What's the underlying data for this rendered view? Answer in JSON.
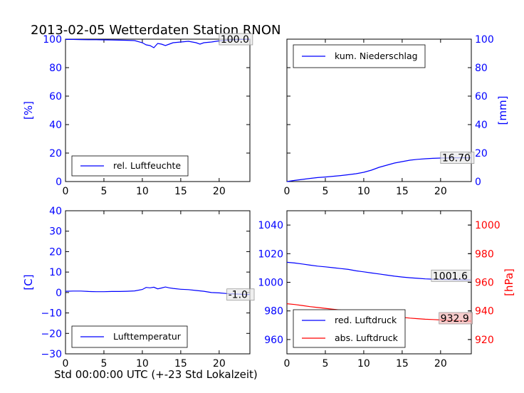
{
  "figure_title": "2013-02-05 Wetterdaten Station RNON",
  "footer_label": "Std 00:00:00 UTC (+-23 Std Lokalzeit)",
  "colors": {
    "blue": "#0000ff",
    "red": "#ff0000",
    "axis": "#000000",
    "value_box_red": "#f4b6b6",
    "value_box_gray": "#e8e8e8"
  },
  "chart_data": [
    {
      "id": "humidity",
      "type": "line",
      "xlim": [
        0,
        24
      ],
      "ylim": [
        0,
        100
      ],
      "x_ticks": [
        "0",
        "5",
        "10",
        "15",
        "20"
      ],
      "y_ticks": [
        "0",
        "20",
        "40",
        "60",
        "80",
        "100"
      ],
      "ylabel": "[%]",
      "legend": [
        "rel. Luftfeuchte"
      ],
      "current_value": "100.0",
      "series": [
        {
          "name": "rel. Luftfeuchte",
          "color": "#0000ff",
          "x": [
            0,
            1,
            2,
            3,
            4,
            5,
            6,
            7,
            8,
            9,
            10,
            10.5,
            11,
            11.5,
            12,
            12.5,
            13,
            13.5,
            14,
            15,
            16,
            17,
            17.5,
            18,
            19,
            20,
            21,
            22,
            23,
            24
          ],
          "y": [
            99.8,
            99.8,
            99.7,
            99.6,
            99.6,
            99.5,
            99.4,
            99.3,
            99.2,
            99,
            97.5,
            96,
            95.5,
            94,
            97,
            96.5,
            95.5,
            96.5,
            97.5,
            98,
            98.5,
            97.5,
            96.5,
            97.5,
            98,
            98.8,
            99.3,
            99.6,
            99.8,
            100
          ]
        }
      ]
    },
    {
      "id": "precipitation",
      "type": "line",
      "xlim": [
        0,
        24
      ],
      "ylim": [
        0,
        100
      ],
      "x_ticks": [
        "0",
        "5",
        "10",
        "15",
        "20"
      ],
      "y_ticks": [
        "0",
        "20",
        "40",
        "60",
        "80",
        "100"
      ],
      "ylabel": "[mm]",
      "legend": [
        "kum. Niederschlag"
      ],
      "current_value": "16.70",
      "series": [
        {
          "name": "kum. Niederschlag",
          "color": "#0000ff",
          "x": [
            0,
            1,
            2,
            3,
            4,
            5,
            6,
            7,
            8,
            9,
            10,
            11,
            12,
            13,
            14,
            15,
            16,
            17,
            18,
            19,
            20,
            21,
            22,
            23,
            24
          ],
          "y": [
            0,
            0.8,
            1.5,
            2.2,
            2.8,
            3.2,
            3.7,
            4.2,
            4.8,
            5.5,
            6.5,
            8,
            10,
            11.5,
            13,
            14,
            15,
            15.6,
            16,
            16.3,
            16.5,
            16.6,
            16.65,
            16.7,
            16.7
          ]
        }
      ]
    },
    {
      "id": "temperature",
      "type": "line",
      "xlim": [
        0,
        24
      ],
      "ylim": [
        -30,
        40
      ],
      "x_ticks": [
        "0",
        "5",
        "10",
        "15",
        "20"
      ],
      "y_ticks": [
        "−30",
        "−20",
        "−10",
        "0",
        "10",
        "20",
        "30",
        "40"
      ],
      "ylabel": "[C]",
      "legend": [
        "Lufttemperatur"
      ],
      "current_value": "-1.0",
      "series": [
        {
          "name": "Lufttemperatur",
          "color": "#0000ff",
          "x": [
            0,
            1,
            2,
            3,
            4,
            5,
            6,
            7,
            8,
            9,
            10,
            10.5,
            11,
            11.5,
            12,
            12.5,
            13,
            13.5,
            14,
            15,
            16,
            17,
            18,
            19,
            20,
            21,
            22,
            23,
            24
          ],
          "y": [
            0.6,
            0.7,
            0.7,
            0.5,
            0.4,
            0.4,
            0.5,
            0.5,
            0.6,
            0.8,
            1.5,
            2.5,
            2.3,
            2.6,
            1.8,
            2.2,
            2.7,
            2.3,
            2,
            1.6,
            1.4,
            1,
            0.6,
            0,
            -0.2,
            -0.5,
            -0.7,
            -0.9,
            -1.0
          ]
        }
      ]
    },
    {
      "id": "pressure",
      "type": "line",
      "xlim": [
        0,
        24
      ],
      "ylim_left": [
        950,
        1050
      ],
      "ylim_right": [
        910,
        1010
      ],
      "x_ticks": [
        "0",
        "5",
        "10",
        "15",
        "20"
      ],
      "y_ticks_left": [
        "960",
        "980",
        "1000",
        "1020",
        "1040"
      ],
      "y_ticks_right": [
        "920",
        "940",
        "960",
        "980",
        "1000"
      ],
      "ylabel_right": "[hPa]",
      "legend": [
        "red. Luftdruck",
        "abs. Luftdruck"
      ],
      "current_value_left": "1001.6",
      "current_value_right": "932.9",
      "series": [
        {
          "name": "red. Luftdruck",
          "color": "#0000ff",
          "axis": "left",
          "x": [
            0,
            1,
            2,
            3,
            4,
            5,
            6,
            7,
            8,
            9,
            10,
            11,
            12,
            13,
            14,
            15,
            16,
            17,
            18,
            19,
            20,
            21,
            22,
            23,
            24
          ],
          "y": [
            1014,
            1013.5,
            1012.8,
            1012,
            1011.3,
            1010.8,
            1010.2,
            1009.6,
            1009,
            1008,
            1007.3,
            1006.5,
            1005.8,
            1005,
            1004.3,
            1003.7,
            1003.2,
            1002.8,
            1002.4,
            1002.2,
            1002,
            1001.9,
            1001.8,
            1001.7,
            1001.6
          ]
        },
        {
          "name": "abs. Luftdruck",
          "color": "#ff0000",
          "axis": "right",
          "x": [
            0,
            1,
            2,
            3,
            4,
            5,
            6,
            7,
            8,
            9,
            10,
            11,
            12,
            13,
            14,
            15,
            16,
            17,
            18,
            19,
            20,
            21,
            22,
            23,
            24
          ],
          "y": [
            945,
            944.5,
            943.8,
            943,
            942.4,
            941.8,
            941.2,
            940.6,
            940,
            939.2,
            938.5,
            937.8,
            937.2,
            936.5,
            936,
            935.5,
            935,
            934.6,
            934.2,
            934,
            933.7,
            933.4,
            933.2,
            933,
            932.9
          ]
        }
      ]
    }
  ]
}
